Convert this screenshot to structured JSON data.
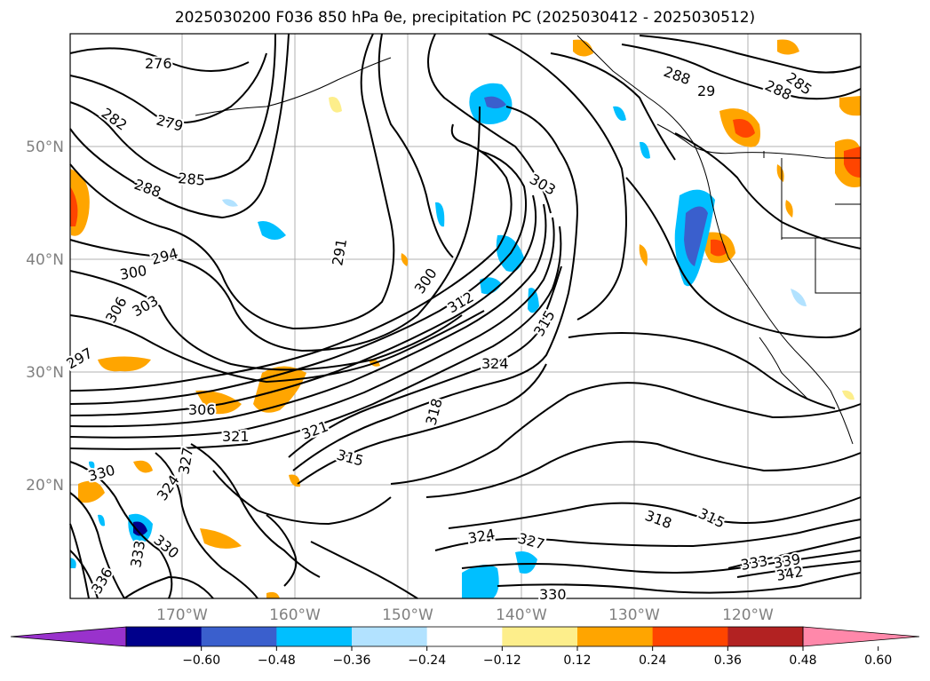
{
  "title": "2025030200 F036 850 hPa θe, precipitation PC (2025030412 - 2025030512)",
  "map": {
    "lat_labels": [
      "50°N",
      "40°N",
      "30°N",
      "20°N"
    ],
    "lon_labels": [
      "170°W",
      "160°W",
      "150°W",
      "140°W",
      "130°W",
      "120°W"
    ],
    "contour_labels": [
      "276",
      "282",
      "279",
      "288",
      "285",
      "294",
      "300",
      "306",
      "303",
      "297",
      "306",
      "321",
      "330",
      "327",
      "324",
      "333",
      "336",
      "330",
      "291",
      "300",
      "312",
      "324",
      "321",
      "315",
      "318",
      "324",
      "327",
      "303",
      "315",
      "318",
      "315",
      "288",
      "285",
      "288",
      "29",
      "333",
      "339",
      "342",
      "330"
    ]
  },
  "colorbar": {
    "colors": [
      "#9932cc",
      "#00008b",
      "#3a5fcd",
      "#00bfff",
      "#b2e2ff",
      "#ffffff",
      "#fdee8b",
      "#ffa500",
      "#ff4500",
      "#b22222",
      "#ff88aa"
    ],
    "ticks": [
      "−0.60",
      "−0.48",
      "−0.36",
      "−0.24",
      "−0.12",
      "0.12",
      "0.24",
      "0.36",
      "0.48",
      "0.60"
    ]
  }
}
